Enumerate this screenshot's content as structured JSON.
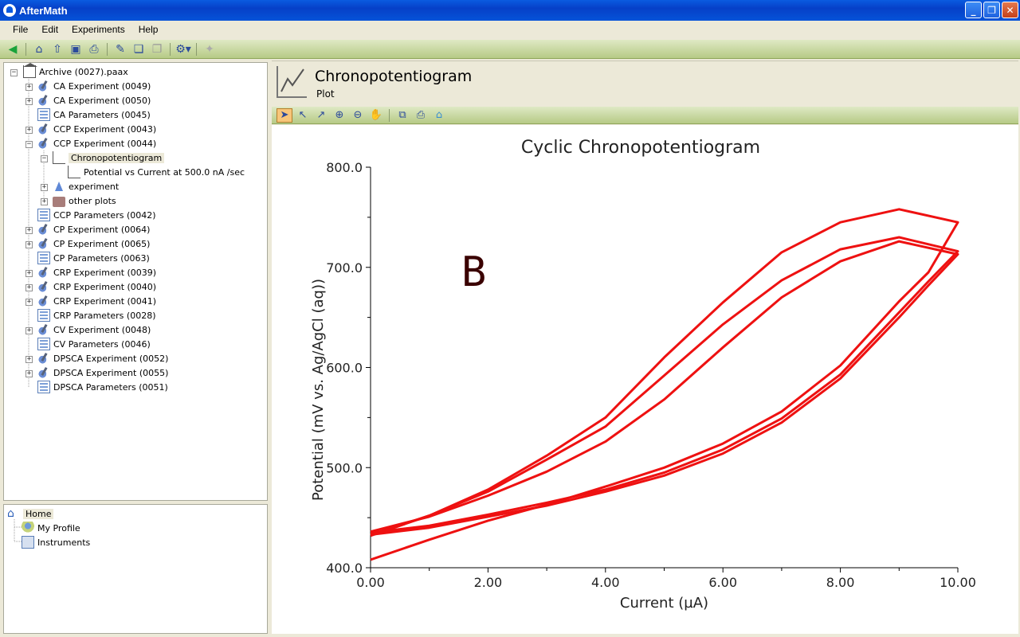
{
  "window": {
    "title": "AfterMath"
  },
  "menu": [
    "File",
    "Edit",
    "Experiments",
    "Help"
  ],
  "toolbar_icons": [
    "back-icon",
    "home-icon",
    "home-up-icon",
    "save-icon",
    "print-icon",
    "wrench-icon",
    "copy-icon",
    "paste-icon",
    "settings-dropdown-icon",
    "disabled-tool-icon"
  ],
  "tree": {
    "root": "Archive (0027).paax",
    "items": [
      "CA Experiment (0049)",
      "CA Experiment (0050)",
      "CA Parameters (0045)",
      "CCP Experiment (0043)",
      "CCP Experiment (0044)",
      "Chronopotentiogram",
      "Potential vs Current at 500.0 nA /sec",
      "experiment",
      "other plots",
      "CCP Parameters (0042)",
      "CP Experiment (0064)",
      "CP Experiment (0065)",
      "CP Parameters (0063)",
      "CRP Experiment (0039)",
      "CRP Experiment (0040)",
      "CRP Experiment (0041)",
      "CRP Parameters (0028)",
      "CV Experiment (0048)",
      "CV Parameters (0046)",
      "DPSCA Experiment (0052)",
      "DPSCA Experiment (0055)",
      "DPSCA Parameters (0051)"
    ]
  },
  "home": {
    "items": [
      "Home",
      "My Profile",
      "Instruments"
    ]
  },
  "header": {
    "title": "Chronopotentiogram",
    "subtitle": "Plot"
  },
  "plot_tools": [
    "pointer-icon",
    "select-icon",
    "select-alt-icon",
    "zoom-in-icon",
    "zoom-out-icon",
    "pan-hand-icon",
    "zoom-fit-icon",
    "print-icon",
    "home-icon"
  ],
  "chart_data": {
    "type": "line",
    "title": "Cyclic Chronopotentiogram",
    "xlabel": "Current (µA)",
    "ylabel": "Potential (mV vs. Ag/AgCl (aq))",
    "xlim": [
      0,
      10
    ],
    "ylim": [
      400,
      800
    ],
    "xticks": [
      "0.00",
      "2.00",
      "4.00",
      "6.00",
      "8.00",
      "10.00"
    ],
    "yticks": [
      "400.0",
      "500.0",
      "600.0",
      "700.0",
      "800.0"
    ],
    "annotation": "B",
    "line_color": "#ee1111",
    "series": [
      {
        "x": [
          0.0,
          1.0,
          2.0,
          3.0,
          4.0,
          5.0,
          6.0,
          7.0,
          8.0,
          9.0,
          9.5,
          10.0,
          9.0,
          8.0,
          7.0,
          6.0,
          5.0,
          4.0,
          3.0,
          2.0,
          1.0,
          0.0
        ],
        "y": [
          408,
          428,
          447,
          463,
          481,
          500,
          524,
          556,
          602,
          666,
          695,
          745,
          758,
          745,
          715,
          665,
          610,
          550,
          512,
          478,
          452,
          432
        ]
      },
      {
        "x": [
          0.0,
          1.0,
          2.0,
          3.0,
          4.0,
          5.0,
          6.0,
          7.0,
          8.0,
          9.0,
          9.5,
          10.0,
          9.0,
          8.0,
          7.0,
          6.0,
          5.0,
          4.0,
          3.0,
          2.0,
          1.0,
          0.0
        ],
        "y": [
          435,
          442,
          453,
          465,
          478,
          495,
          518,
          549,
          593,
          655,
          686,
          716,
          730,
          718,
          687,
          643,
          592,
          541,
          508,
          476,
          452,
          433
        ]
      },
      {
        "x": [
          0.0,
          1.0,
          2.0,
          3.0,
          4.0,
          5.0,
          6.0,
          7.0,
          8.0,
          9.0,
          9.5,
          10.0,
          9.0,
          8.0,
          7.0,
          6.0,
          5.0,
          4.0,
          3.0,
          2.0,
          1.0,
          0.0
        ],
        "y": [
          433,
          440,
          451,
          462,
          476,
          492,
          514,
          545,
          589,
          650,
          682,
          713,
          726,
          706,
          670,
          620,
          568,
          526,
          496,
          472,
          451,
          436
        ]
      }
    ]
  }
}
